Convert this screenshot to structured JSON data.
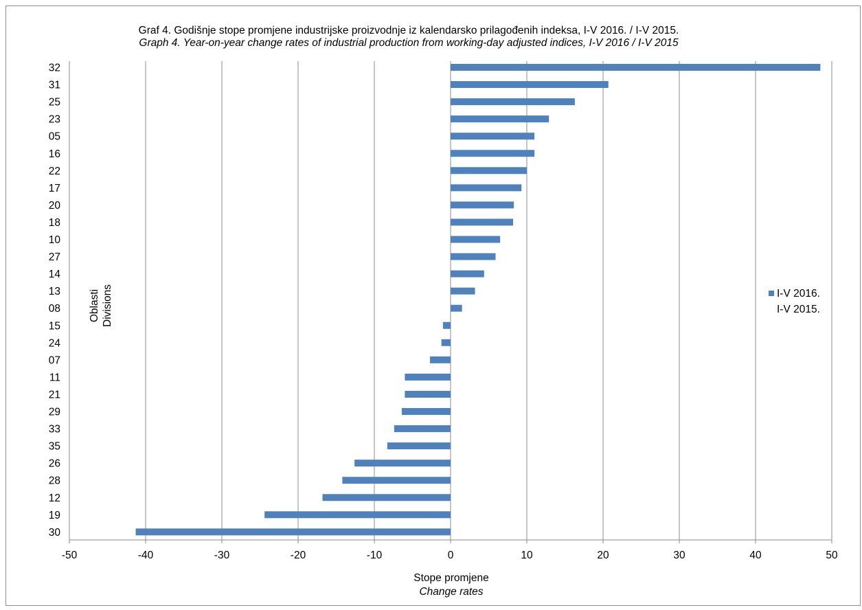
{
  "chart_data": {
    "type": "bar",
    "orientation": "horizontal",
    "title": "Graf 4. Godišnje stope  promjene industrijske proizvodnje iz kalendarsko prilagođenih indeksa, I-V 2016. / I-V 2015.",
    "subtitle": "Graph 4. Year-on-year change rates of industrial production from working-day adjusted indices, I-V 2016 / I-V 2015",
    "xlabel": "Stope promjene",
    "xlabel_en": "Change rates",
    "ylabel": "Oblasti",
    "ylabel_en": "Divisions",
    "xlim": [
      -50,
      50
    ],
    "xticks": [
      -50,
      -40,
      -30,
      -20,
      -10,
      0,
      10,
      20,
      30,
      40,
      50
    ],
    "grid": "vertical",
    "legend_position": "right",
    "legend": {
      "line1": "I-V 2016.",
      "line2": "I-V 2015."
    },
    "bar_color": "#4f81bd",
    "categories": [
      "32",
      "31",
      "25",
      "23",
      "05",
      "16",
      "22",
      "17",
      "20",
      "18",
      "10",
      "27",
      "14",
      "13",
      "08",
      "15",
      "24",
      "07",
      "11",
      "21",
      "29",
      "33",
      "35",
      "26",
      "28",
      "12",
      "19",
      "30"
    ],
    "values": [
      48.5,
      20.7,
      16.3,
      12.9,
      11.0,
      11.0,
      10.0,
      9.3,
      8.3,
      8.2,
      6.5,
      5.9,
      4.4,
      3.2,
      1.5,
      -1.0,
      -1.2,
      -2.7,
      -6.0,
      -6.0,
      -6.4,
      -7.4,
      -8.3,
      -12.6,
      -14.2,
      -16.8,
      -24.4,
      -41.3
    ]
  }
}
